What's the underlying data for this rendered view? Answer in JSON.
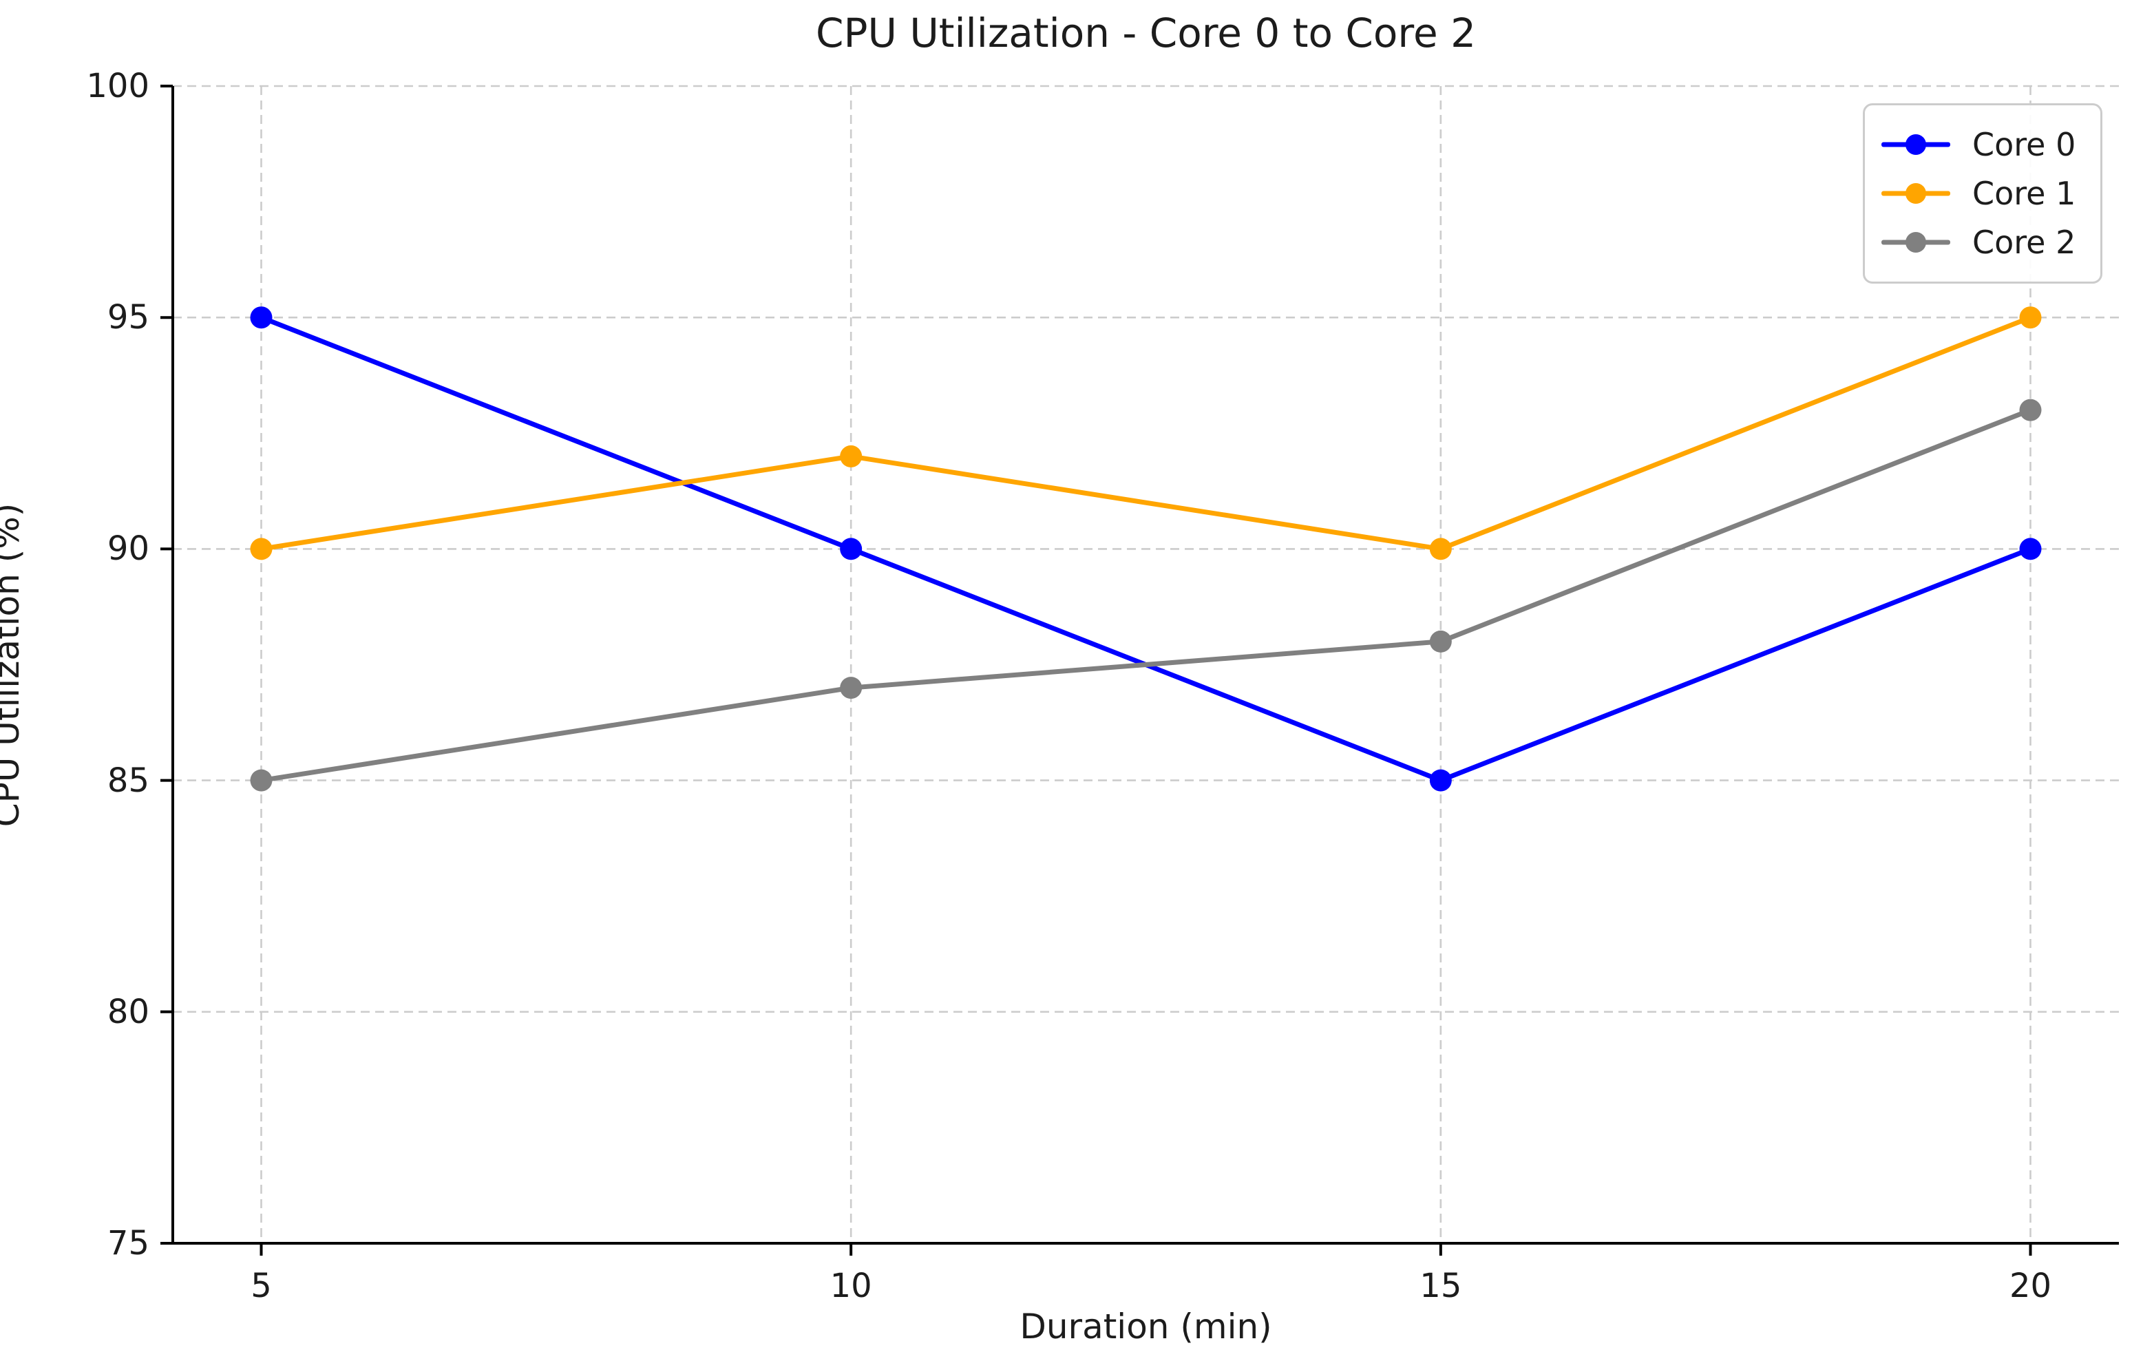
{
  "chart_data": {
    "type": "line",
    "title": "CPU Utilization - Core 0 to Core 2",
    "xlabel": "Duration (min)",
    "ylabel": "CPU Utilization (%)",
    "x": [
      5,
      10,
      15,
      20
    ],
    "series": [
      {
        "name": "Core 0",
        "color": "#0000ff",
        "values": [
          95,
          90,
          85,
          90
        ]
      },
      {
        "name": "Core 1",
        "color": "#ffa500",
        "values": [
          90,
          92,
          90,
          95
        ]
      },
      {
        "name": "Core 2",
        "color": "#808080",
        "values": [
          85,
          87,
          88,
          93
        ]
      }
    ],
    "xticks": [
      5,
      10,
      15,
      20
    ],
    "yticks": [
      75,
      80,
      85,
      90,
      95,
      100
    ],
    "xlim": [
      4.25,
      20.75
    ],
    "ylim": [
      75,
      100
    ],
    "grid": true,
    "grid_color": "#cccccc",
    "spine_color": "#000000",
    "legend_position": "upper right",
    "marker": "circle",
    "line_width": 7,
    "marker_radius": 16
  }
}
